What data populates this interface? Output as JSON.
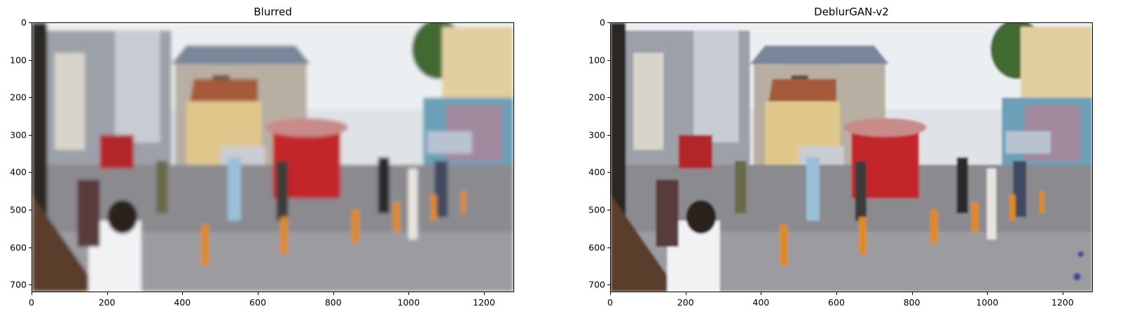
{
  "panels": [
    {
      "title": "Blurred"
    },
    {
      "title": "DeblurGAN-v2"
    }
  ],
  "axes": {
    "x_ticks": [
      "0",
      "200",
      "400",
      "600",
      "800",
      "1000",
      "1200"
    ],
    "y_ticks": [
      "0",
      "100",
      "200",
      "300",
      "400",
      "500",
      "600",
      "700"
    ],
    "xlim": [
      0,
      1280
    ],
    "ylim": [
      720,
      0
    ]
  },
  "scene": {
    "description_icon": "street-photo",
    "colors": {
      "sky": "#e9ecef",
      "building": "#b8aea2",
      "dome": "#7a8699",
      "pavement": "#8a8a8f",
      "bollard": "#e08a1a",
      "cart": "#b2262c",
      "tree": "#4f7a3a"
    }
  }
}
